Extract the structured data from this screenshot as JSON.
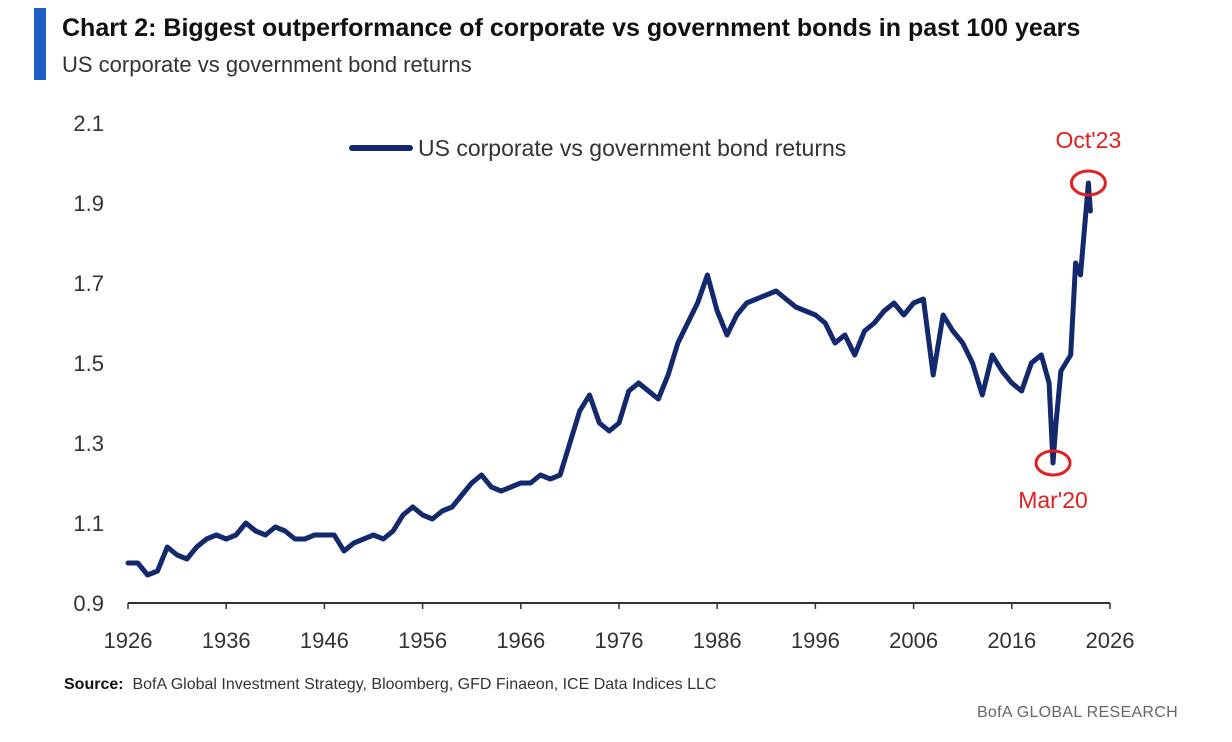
{
  "header": {
    "title": "Chart 2: Biggest outperformance of corporate vs government bonds in past 100 years",
    "subtitle": "US corporate vs government bond returns"
  },
  "footer": {
    "source_label": "Source:",
    "source_text": "BofA Global Investment Strategy, Bloomberg, GFD Finaeon,  ICE Data Indices LLC",
    "brand": "BofA GLOBAL RESEARCH"
  },
  "colors": {
    "accent": "#1f5fc6",
    "line": "#14286e",
    "annotation": "#e02020",
    "axis": "#333333"
  },
  "chart_data": {
    "type": "line",
    "title": "",
    "xlabel": "",
    "ylabel": "",
    "xlim": [
      1926,
      2026
    ],
    "ylim": [
      0.9,
      2.1
    ],
    "x_ticks": [
      "1926",
      "1936",
      "1946",
      "1956",
      "1966",
      "1976",
      "1986",
      "1996",
      "2006",
      "2016",
      "2026"
    ],
    "y_ticks": [
      "2.1",
      "1.9",
      "1.7",
      "1.5",
      "1.3",
      "1.1",
      "0.9"
    ],
    "grid": false,
    "legend_position": "top-center",
    "series": [
      {
        "name": "US corporate vs government bond returns",
        "x": [
          1926,
          1927,
          1928,
          1929,
          1930,
          1931,
          1932,
          1933,
          1934,
          1935,
          1936,
          1937,
          1938,
          1939,
          1940,
          1941,
          1942,
          1943,
          1944,
          1945,
          1946,
          1947,
          1948,
          1949,
          1950,
          1951,
          1952,
          1953,
          1954,
          1955,
          1956,
          1957,
          1958,
          1959,
          1960,
          1961,
          1962,
          1963,
          1964,
          1965,
          1966,
          1967,
          1968,
          1969,
          1970,
          1971,
          1972,
          1973,
          1974,
          1975,
          1976,
          1977,
          1978,
          1979,
          1980,
          1981,
          1982,
          1983,
          1984,
          1985,
          1986,
          1987,
          1988,
          1989,
          1990,
          1991,
          1992,
          1993,
          1994,
          1995,
          1996,
          1997,
          1998,
          1999,
          2000,
          2001,
          2002,
          2003,
          2004,
          2005,
          2006,
          2007,
          2008,
          2009,
          2010,
          2011,
          2012,
          2013,
          2014,
          2015,
          2016,
          2017,
          2018,
          2019,
          2019.8,
          2020.2,
          2020.5,
          2021,
          2022,
          2022.5,
          2023,
          2023.8,
          2024
        ],
        "values": [
          1.0,
          1.0,
          0.97,
          0.98,
          1.04,
          1.02,
          1.01,
          1.04,
          1.06,
          1.07,
          1.06,
          1.07,
          1.1,
          1.08,
          1.07,
          1.09,
          1.08,
          1.06,
          1.06,
          1.07,
          1.07,
          1.07,
          1.03,
          1.05,
          1.06,
          1.07,
          1.06,
          1.08,
          1.12,
          1.14,
          1.12,
          1.11,
          1.13,
          1.14,
          1.17,
          1.2,
          1.22,
          1.19,
          1.18,
          1.19,
          1.2,
          1.2,
          1.22,
          1.21,
          1.22,
          1.3,
          1.38,
          1.42,
          1.35,
          1.33,
          1.35,
          1.43,
          1.45,
          1.43,
          1.41,
          1.47,
          1.55,
          1.6,
          1.65,
          1.72,
          1.63,
          1.57,
          1.62,
          1.65,
          1.66,
          1.67,
          1.68,
          1.66,
          1.64,
          1.63,
          1.62,
          1.6,
          1.55,
          1.57,
          1.52,
          1.58,
          1.6,
          1.63,
          1.65,
          1.62,
          1.65,
          1.66,
          1.47,
          1.62,
          1.58,
          1.55,
          1.5,
          1.42,
          1.52,
          1.48,
          1.45,
          1.43,
          1.5,
          1.52,
          1.45,
          1.25,
          1.35,
          1.48,
          1.52,
          1.75,
          1.72,
          1.95,
          1.88
        ]
      }
    ],
    "annotations": [
      {
        "label": "Oct'23",
        "x": 2023.8,
        "y": 1.95,
        "color": "#e02020",
        "position": "above"
      },
      {
        "label": "Mar'20",
        "x": 2020.2,
        "y": 1.25,
        "color": "#e02020",
        "position": "below"
      }
    ]
  }
}
